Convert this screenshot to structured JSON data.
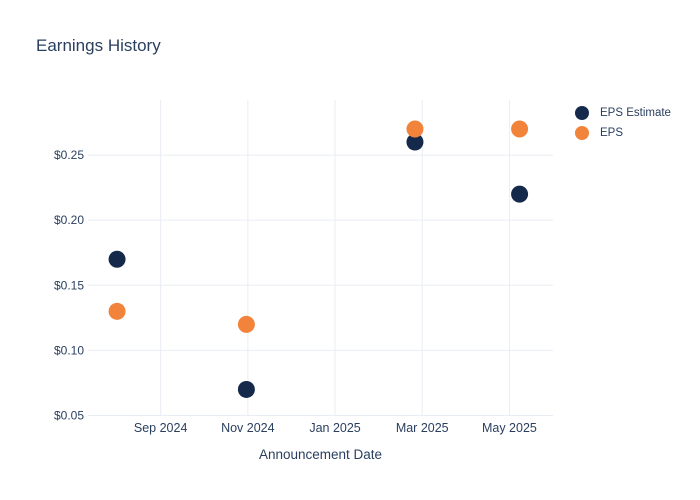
{
  "page": {
    "background": "#ffffff",
    "text_color": "#2a3f5f"
  },
  "chart_data": {
    "type": "scatter",
    "title": "Earnings History",
    "xlabel": "Announcement Date",
    "ylabel": "",
    "grid": true,
    "legend_position": "right",
    "background": "#ffffff",
    "text_color": "#2a3f5f",
    "grid_color": "#e9edf4",
    "marker_size_px": 17,
    "y_tick_labels": [
      "$0.05",
      "$0.10",
      "$0.15",
      "$0.20",
      "$0.25"
    ],
    "y_tick_values": [
      0.05,
      0.1,
      0.15,
      0.2,
      0.25
    ],
    "x_tick_labels": [
      "Sep 2024",
      "Nov 2024",
      "Jan 2025",
      "Mar 2025",
      "May 2025"
    ],
    "x_tick_dates": [
      "2024-09-01",
      "2024-11-01",
      "2025-01-01",
      "2025-03-01",
      "2025-05-01"
    ],
    "xlim_dates": [
      "2024-07-11",
      "2025-06-01"
    ],
    "ylim": [
      0.0496,
      0.2923
    ],
    "series": [
      {
        "name": "EPS Estimate",
        "color": "#15294b",
        "marker": "circle",
        "points": [
          {
            "date": "2024-08-01",
            "value": 0.17
          },
          {
            "date": "2024-10-30",
            "value": 0.07
          },
          {
            "date": "2025-02-26",
            "value": 0.26
          },
          {
            "date": "2025-05-08",
            "value": 0.22
          }
        ]
      },
      {
        "name": "EPS",
        "color": "#f2833b",
        "marker": "circle",
        "points": [
          {
            "date": "2024-08-01",
            "value": 0.13
          },
          {
            "date": "2024-10-30",
            "value": 0.12
          },
          {
            "date": "2025-02-26",
            "value": 0.27
          },
          {
            "date": "2025-05-08",
            "value": 0.27
          }
        ]
      }
    ]
  }
}
